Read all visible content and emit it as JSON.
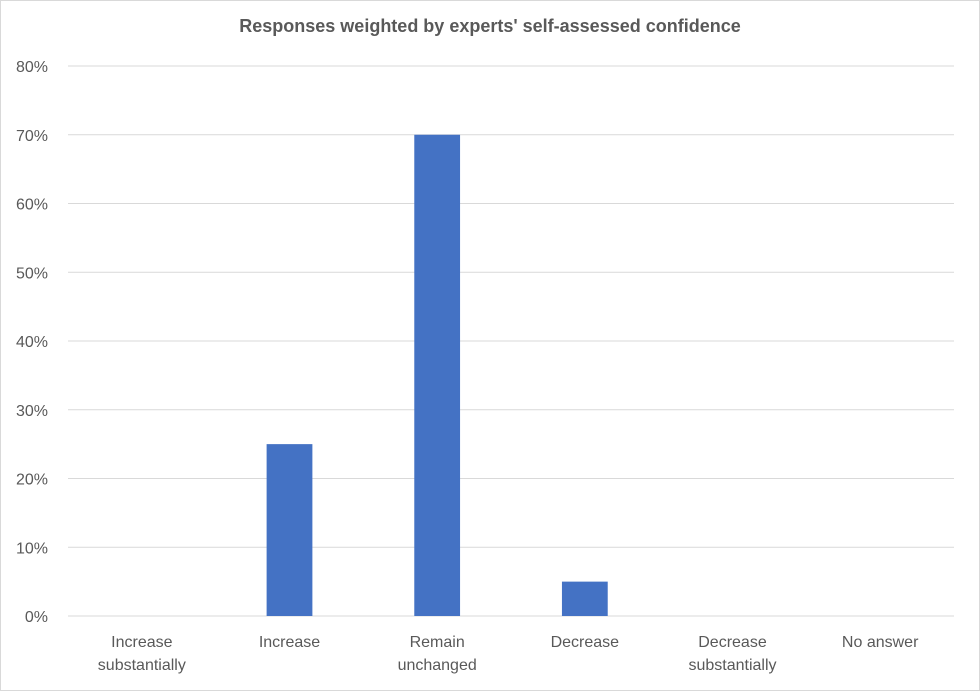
{
  "chart_data": {
    "type": "bar",
    "title": "Responses weighted by experts' self-assessed confidence",
    "categories": [
      [
        "Increase",
        "substantially"
      ],
      [
        "Increase"
      ],
      [
        "Remain",
        "unchanged"
      ],
      [
        "Decrease"
      ],
      [
        "Decrease",
        "substantially"
      ],
      [
        "No answer"
      ]
    ],
    "values": [
      0,
      25,
      70,
      5,
      0,
      0
    ],
    "ylim": [
      0,
      80
    ],
    "yticks": [
      0,
      10,
      20,
      30,
      40,
      50,
      60,
      70,
      80
    ],
    "ytick_suffix": "%",
    "grid": true,
    "bar_color": "#4472c4",
    "grid_color": "#d9d9d9",
    "text_color": "#595959"
  }
}
